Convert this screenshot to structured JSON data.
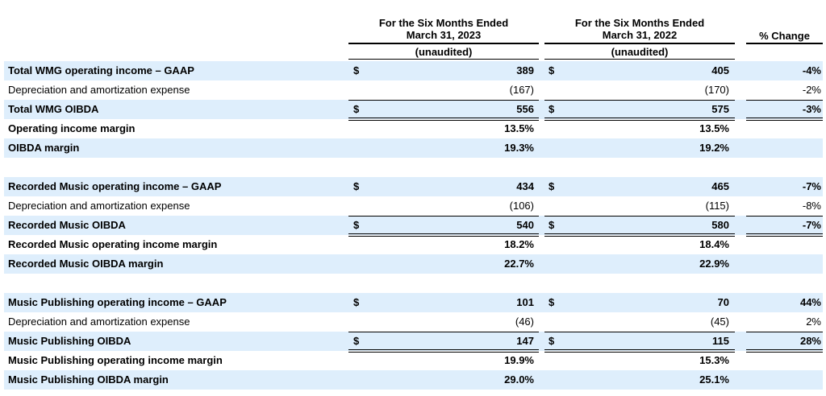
{
  "header": {
    "col1_line1": "For the Six Months Ended",
    "col1_line2": "March 31, 2023",
    "col1_sub": "(unaudited)",
    "col2_line1": "For the Six Months Ended",
    "col2_line2": "March 31, 2022",
    "col2_sub": "(unaudited)",
    "col3": "% Change"
  },
  "rows": [
    {
      "label": "Total WMG operating income – GAAP",
      "d1": "$",
      "v1": "389",
      "d2": "$",
      "v2": "405",
      "pc": "-4%"
    },
    {
      "label": "Depreciation and amortization expense",
      "d1": "",
      "v1": "(167)",
      "d2": "",
      "v2": "(170)",
      "pc": "-2%"
    },
    {
      "label": "Total WMG OIBDA",
      "d1": "$",
      "v1": "556",
      "d2": "$",
      "v2": "575",
      "pc": "-3%"
    },
    {
      "label": "Operating income margin",
      "d1": "",
      "v1": "13.5%",
      "d2": "",
      "v2": "13.5%",
      "pc": ""
    },
    {
      "label": "OIBDA margin",
      "d1": "",
      "v1": "19.3%",
      "d2": "",
      "v2": "19.2%",
      "pc": ""
    },
    {
      "label": "Recorded Music operating income – GAAP",
      "d1": "$",
      "v1": "434",
      "d2": "$",
      "v2": "465",
      "pc": "-7%"
    },
    {
      "label": "Depreciation and amortization expense",
      "d1": "",
      "v1": "(106)",
      "d2": "",
      "v2": "(115)",
      "pc": "-8%"
    },
    {
      "label": "Recorded Music OIBDA",
      "d1": "$",
      "v1": "540",
      "d2": "$",
      "v2": "580",
      "pc": "-7%"
    },
    {
      "label": "Recorded Music operating income margin",
      "d1": "",
      "v1": "18.2%",
      "d2": "",
      "v2": "18.4%",
      "pc": ""
    },
    {
      "label": "Recorded Music OIBDA margin",
      "d1": "",
      "v1": "22.7%",
      "d2": "",
      "v2": "22.9%",
      "pc": ""
    },
    {
      "label": "Music Publishing operating income – GAAP",
      "d1": "$",
      "v1": "101",
      "d2": "$",
      "v2": "70",
      "pc": "44%"
    },
    {
      "label": "Depreciation and amortization expense",
      "d1": "",
      "v1": "(46)",
      "d2": "",
      "v2": "(45)",
      "pc": "2%"
    },
    {
      "label": "Music Publishing OIBDA",
      "d1": "$",
      "v1": "147",
      "d2": "$",
      "v2": "115",
      "pc": "28%"
    },
    {
      "label": "Music Publishing operating income margin",
      "d1": "",
      "v1": "19.9%",
      "d2": "",
      "v2": "15.3%",
      "pc": ""
    },
    {
      "label": "Music Publishing OIBDA margin",
      "d1": "",
      "v1": "29.0%",
      "d2": "",
      "v2": "25.1%",
      "pc": ""
    }
  ]
}
